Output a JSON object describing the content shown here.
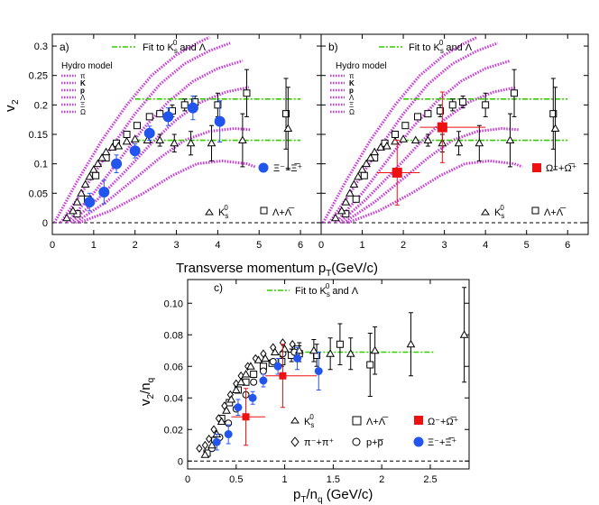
{
  "common": {
    "hydro_label": "Hydro model",
    "hydro_species": [
      "π",
      "K",
      "p",
      "Λ",
      "Ξ",
      "Ω"
    ],
    "fit_label": "Fit to K",
    "fit_label_sub": "s",
    "fit_label_sup": "0",
    "fit_label_tail": " and Λ",
    "k0s_label": "K",
    "k0s_sub": "s",
    "k0s_sup": "0",
    "lambda_label": "Λ+Λ̅",
    "xi_label": "Ξ⁻+Ξ̅⁺",
    "omega_label": "Ω⁻+Ω̅⁺",
    "pion_label": "π⁻+π⁺",
    "proton_label": "p+p̅"
  },
  "colors": {
    "hydro": "#cc33dd",
    "fit": "#33cc00",
    "xi": "#2255ee",
    "omega": "#ee1111",
    "open": "#000000"
  },
  "xlabel_top": "Transverse momentum p",
  "xlabel_top_sub": "T",
  "xlabel_top_unit": "(GeV/c)",
  "chart_data": [
    {
      "type": "scatter",
      "panel_label": "a)",
      "ylabel": "v",
      "ylabel_sub": "2",
      "xlim": [
        0,
        6.5
      ],
      "ylim": [
        -0.02,
        0.32
      ],
      "xticks": [
        0,
        1,
        2,
        3,
        4,
        5,
        6
      ],
      "yticks": [
        0,
        0.05,
        0.1,
        0.15,
        0.2,
        0.25,
        0.3
      ],
      "fits": {
        "k0s_level": 0.14,
        "lambda_level": 0.21
      },
      "series": [
        {
          "name": "K",
          "marker": "triangle-open",
          "points": [
            [
              0.35,
              0.008
            ],
            [
              0.5,
              0.02
            ],
            [
              0.6,
              0.035
            ],
            [
              0.7,
              0.05
            ],
            [
              0.8,
              0.065
            ],
            [
              0.9,
              0.078
            ],
            [
              1.0,
              0.09
            ],
            [
              1.1,
              0.1
            ],
            [
              1.2,
              0.11
            ],
            [
              1.3,
              0.12
            ],
            [
              1.45,
              0.128
            ],
            [
              1.6,
              0.13
            ],
            [
              1.8,
              0.138
            ],
            [
              2.0,
              0.142
            ],
            [
              2.3,
              0.14
            ],
            [
              2.6,
              0.14
            ],
            [
              2.95,
              0.135
            ],
            [
              3.35,
              0.135
            ],
            [
              3.85,
              0.135
            ],
            [
              4.6,
              0.14
            ],
            [
              5.7,
              0.16
            ]
          ],
          "errors": [
            0,
            0,
            0,
            0,
            0,
            0,
            0,
            0,
            0,
            0,
            0,
            0,
            0,
            0,
            0,
            0.01,
            0.015,
            0.02,
            0.03,
            0.045,
            0.07
          ]
        },
        {
          "name": "Λ+Λ̅",
          "marker": "square-open",
          "points": [
            [
              0.6,
              0.015
            ],
            [
              0.85,
              0.04
            ],
            [
              1.05,
              0.08
            ],
            [
              1.3,
              0.11
            ],
            [
              1.55,
              0.135
            ],
            [
              1.8,
              0.15
            ],
            [
              2.05,
              0.165
            ],
            [
              2.35,
              0.18
            ],
            [
              2.6,
              0.185
            ],
            [
              2.9,
              0.19
            ],
            [
              3.2,
              0.2
            ],
            [
              3.45,
              0.205
            ],
            [
              4.0,
              0.2
            ],
            [
              4.7,
              0.22
            ],
            [
              5.65,
              0.185
            ]
          ],
          "errors": [
            0,
            0,
            0,
            0,
            0,
            0,
            0,
            0,
            0,
            0.01,
            0.01,
            0.01,
            0.02,
            0.04,
            0.06
          ]
        },
        {
          "name": "Ξ⁻+Ξ̅⁺",
          "marker": "circle-filled",
          "points": [
            [
              0.9,
              0.035
            ],
            [
              1.25,
              0.052
            ],
            [
              1.55,
              0.1
            ],
            [
              2.0,
              0.122
            ],
            [
              2.35,
              0.152
            ],
            [
              2.8,
              0.18
            ],
            [
              3.4,
              0.195
            ],
            [
              4.05,
              0.172
            ]
          ],
          "errors": [
            0.015,
            0.02,
            0.015,
            0.012,
            0.012,
            0.015,
            0.02,
            0.035
          ]
        }
      ]
    },
    {
      "type": "scatter",
      "panel_label": "b)",
      "ylabel": "",
      "xlim": [
        0,
        6.5
      ],
      "ylim": [
        -0.02,
        0.32
      ],
      "xticks": [
        0,
        1,
        2,
        3,
        4,
        5,
        6
      ],
      "yticks": [
        0,
        0.05,
        0.1,
        0.15,
        0.2,
        0.25,
        0.3
      ],
      "fits": {
        "k0s_level": 0.14,
        "lambda_level": 0.21
      },
      "series": [
        {
          "name": "K",
          "marker": "triangle-open",
          "points": [
            [
              0.35,
              0.008
            ],
            [
              0.5,
              0.02
            ],
            [
              0.6,
              0.035
            ],
            [
              0.7,
              0.05
            ],
            [
              0.8,
              0.065
            ],
            [
              0.9,
              0.078
            ],
            [
              1.0,
              0.09
            ],
            [
              1.1,
              0.1
            ],
            [
              1.2,
              0.11
            ],
            [
              1.3,
              0.12
            ],
            [
              1.45,
              0.128
            ],
            [
              1.6,
              0.13
            ],
            [
              1.8,
              0.138
            ],
            [
              2.0,
              0.142
            ],
            [
              2.3,
              0.14
            ],
            [
              2.6,
              0.14
            ],
            [
              2.95,
              0.135
            ],
            [
              3.35,
              0.135
            ],
            [
              3.85,
              0.135
            ],
            [
              4.6,
              0.14
            ],
            [
              5.7,
              0.16
            ]
          ],
          "errors": [
            0,
            0,
            0,
            0,
            0,
            0,
            0,
            0,
            0,
            0,
            0,
            0,
            0,
            0,
            0,
            0.01,
            0.015,
            0.02,
            0.03,
            0.045,
            0.07
          ]
        },
        {
          "name": "Λ+Λ̅",
          "marker": "square-open",
          "points": [
            [
              0.6,
              0.015
            ],
            [
              0.85,
              0.04
            ],
            [
              1.05,
              0.08
            ],
            [
              1.3,
              0.11
            ],
            [
              1.55,
              0.135
            ],
            [
              1.8,
              0.15
            ],
            [
              2.05,
              0.165
            ],
            [
              2.35,
              0.18
            ],
            [
              2.6,
              0.185
            ],
            [
              2.9,
              0.19
            ],
            [
              3.2,
              0.2
            ],
            [
              3.45,
              0.205
            ],
            [
              4.0,
              0.2
            ],
            [
              4.7,
              0.22
            ],
            [
              5.65,
              0.185
            ]
          ],
          "errors": [
            0,
            0,
            0,
            0,
            0,
            0,
            0,
            0,
            0,
            0.01,
            0.01,
            0.01,
            0.02,
            0.04,
            0.06
          ]
        },
        {
          "name": "Ω⁻+Ω̅⁺",
          "marker": "square-filled",
          "points": [
            [
              1.85,
              0.085
            ],
            [
              2.95,
              0.162
            ]
          ],
          "errors": [
            0.055,
            0.06
          ],
          "xerr": [
            [
              1.35,
              2.4
            ],
            [
              2.4,
              4.0
            ]
          ]
        }
      ]
    },
    {
      "type": "scatter",
      "panel_label": "c)",
      "ylabel": "v",
      "ylabel_sub": "2",
      "ylabel_tail": "/n",
      "ylabel_tail_sub": "q",
      "xlabel": "p",
      "xlabel_sub": "T",
      "xlabel_mid": "/n",
      "xlabel_mid_sub": "q",
      "xlabel_tail": " (GeV/c)",
      "xlim": [
        0,
        2.9
      ],
      "ylim": [
        -0.005,
        0.115
      ],
      "xticks": [
        0,
        0.5,
        1.0,
        1.5,
        2.0,
        2.5
      ],
      "xticklabels": [
        "0",
        "0.5",
        "1",
        "1.5",
        "2",
        "2.5"
      ],
      "yticks": [
        0,
        0.02,
        0.04,
        0.06,
        0.08,
        0.1
      ],
      "fits": {
        "level": 0.069,
        "x_range": [
          1.1,
          2.55
        ]
      },
      "series": [
        {
          "name": "K",
          "marker": "triangle-open",
          "points": [
            [
              0.18,
              0.004
            ],
            [
              0.25,
              0.01
            ],
            [
              0.3,
              0.017
            ],
            [
              0.35,
              0.025
            ],
            [
              0.4,
              0.032
            ],
            [
              0.45,
              0.039
            ],
            [
              0.5,
              0.045
            ],
            [
              0.55,
              0.05
            ],
            [
              0.6,
              0.055
            ],
            [
              0.65,
              0.06
            ],
            [
              0.73,
              0.064
            ],
            [
              0.8,
              0.065
            ],
            [
              0.9,
              0.069
            ],
            [
              1.0,
              0.071
            ],
            [
              1.15,
              0.07
            ],
            [
              1.3,
              0.07
            ],
            [
              1.47,
              0.068
            ],
            [
              1.68,
              0.068
            ],
            [
              1.93,
              0.07
            ],
            [
              2.3,
              0.074
            ],
            [
              2.85,
              0.08
            ]
          ],
          "errors": [
            0,
            0,
            0,
            0,
            0,
            0,
            0,
            0,
            0,
            0,
            0,
            0,
            0,
            0,
            0.005,
            0.007,
            0.01,
            0.01,
            0.015,
            0.02,
            0.03
          ]
        },
        {
          "name": "Λ+Λ̅",
          "marker": "square-open",
          "points": [
            [
              0.2,
              0.005
            ],
            [
              0.28,
              0.013
            ],
            [
              0.35,
              0.027
            ],
            [
              0.43,
              0.037
            ],
            [
              0.52,
              0.045
            ],
            [
              0.6,
              0.05
            ],
            [
              0.68,
              0.055
            ],
            [
              0.78,
              0.06
            ],
            [
              0.87,
              0.062
            ],
            [
              0.97,
              0.063
            ],
            [
              1.07,
              0.067
            ],
            [
              1.15,
              0.068
            ],
            [
              1.33,
              0.067
            ],
            [
              1.57,
              0.074
            ],
            [
              1.88,
              0.061
            ]
          ],
          "errors": [
            0,
            0,
            0,
            0,
            0,
            0,
            0,
            0,
            0,
            0.003,
            0.004,
            0.005,
            0.007,
            0.013,
            0.02
          ]
        },
        {
          "name": "π⁻+π⁺",
          "marker": "diamond-open",
          "points": [
            [
              0.12,
              0.008
            ],
            [
              0.18,
              0.01
            ],
            [
              0.22,
              0.014
            ],
            [
              0.27,
              0.02
            ],
            [
              0.32,
              0.027
            ],
            [
              0.38,
              0.035
            ],
            [
              0.44,
              0.042
            ],
            [
              0.5,
              0.049
            ],
            [
              0.55,
              0.054
            ],
            [
              0.62,
              0.06
            ],
            [
              0.7,
              0.065
            ],
            [
              0.78,
              0.068
            ],
            [
              0.88,
              0.072
            ],
            [
              0.98,
              0.075
            ],
            [
              1.08,
              0.074
            ]
          ],
          "errors": [
            0,
            0,
            0,
            0,
            0,
            0,
            0,
            0,
            0,
            0,
            0,
            0,
            0,
            0,
            0
          ]
        },
        {
          "name": "p+p̅",
          "marker": "circle-open",
          "points": [
            [
              0.25,
              0.008
            ],
            [
              0.33,
              0.015
            ],
            [
              0.42,
              0.024
            ],
            [
              0.5,
              0.033
            ],
            [
              0.6,
              0.042
            ],
            [
              0.68,
              0.05
            ],
            [
              0.78,
              0.057
            ],
            [
              0.88,
              0.063
            ],
            [
              0.98,
              0.068
            ],
            [
              1.1,
              0.069
            ]
          ],
          "errors": [
            0,
            0,
            0,
            0,
            0,
            0,
            0,
            0,
            0,
            0.004
          ]
        },
        {
          "name": "Ω⁻+Ω̅⁺",
          "marker": "square-filled",
          "points": [
            [
              0.6,
              0.028
            ],
            [
              0.98,
              0.054
            ]
          ],
          "errors": [
            0.018,
            0.02
          ],
          "xerr": [
            [
              0.45,
              0.8
            ],
            [
              0.8,
              1.33
            ]
          ]
        },
        {
          "name": "Ξ⁻+Ξ̅⁺",
          "marker": "circle-filled",
          "points": [
            [
              0.3,
              0.012
            ],
            [
              0.42,
              0.017
            ],
            [
              0.52,
              0.034
            ],
            [
              0.67,
              0.04
            ],
            [
              0.78,
              0.051
            ],
            [
              0.93,
              0.06
            ],
            [
              1.13,
              0.065
            ],
            [
              1.35,
              0.057
            ]
          ],
          "errors": [
            0.005,
            0.006,
            0.005,
            0.004,
            0.004,
            0.005,
            0.007,
            0.012
          ]
        }
      ]
    }
  ]
}
